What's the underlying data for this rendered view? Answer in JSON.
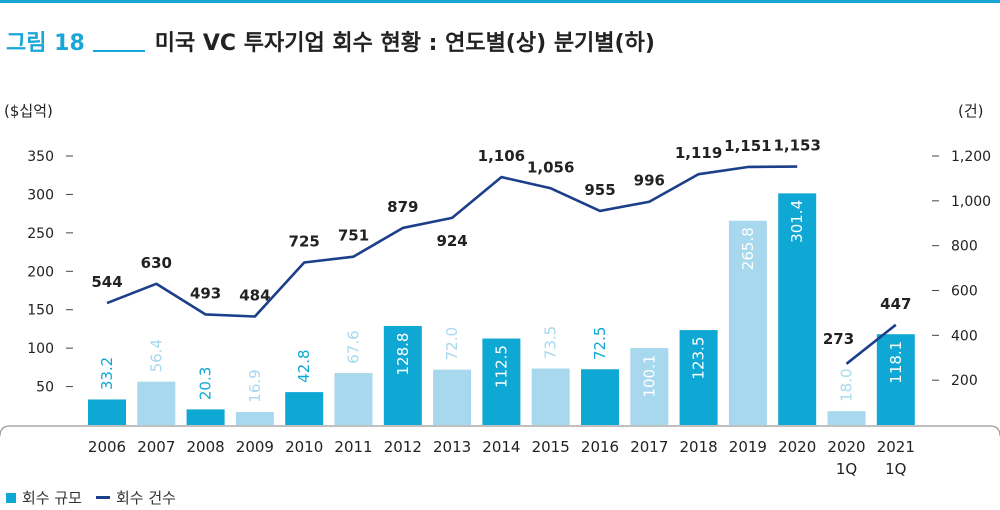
{
  "header": {
    "fig_label": "그림 18",
    "title": "미국 VC 투자기업 회수 현황 : 연도별(상) 분기별(하)"
  },
  "chart_data": {
    "type": "bar+line",
    "categories": [
      "2006",
      "2007",
      "2008",
      "2009",
      "2010",
      "2011",
      "2012",
      "2013",
      "2014",
      "2015",
      "2016",
      "2017",
      "2018",
      "2019",
      "2020",
      "2020\n1Q",
      "2021\n1Q"
    ],
    "y_left_unit": "($십억)",
    "y_right_unit": "(건)",
    "y_left_ticks": [
      50,
      100,
      150,
      200,
      250,
      300,
      350
    ],
    "y_right_ticks": [
      "200",
      "400",
      "600",
      "800",
      "1,000",
      "1,200"
    ],
    "ylim_left": [
      0,
      350
    ],
    "ylim_right": [
      0,
      1200
    ],
    "series": [
      {
        "name": "회수 규모",
        "type": "bar",
        "axis": "left",
        "values": [
          33.2,
          56.4,
          20.3,
          16.9,
          42.8,
          67.6,
          128.8,
          72.0,
          112.5,
          73.5,
          72.5,
          100.1,
          123.5,
          265.8,
          301.4,
          18.0,
          118.1
        ],
        "labels": [
          "33.2",
          "56.4",
          "20.3",
          "16.9",
          "42.8",
          "67.6",
          "128.8",
          "72.0",
          "112.5",
          "73.5",
          "72.5",
          "100.1",
          "123.5",
          "265.8",
          "301.4",
          "18.0",
          "118.1"
        ]
      },
      {
        "name": "회수 건수",
        "type": "line",
        "axis": "right",
        "values": [
          544,
          630,
          493,
          484,
          725,
          751,
          879,
          924,
          1106,
          1056,
          955,
          996,
          1119,
          1151,
          1153,
          273,
          447
        ],
        "labels": [
          "544",
          "630",
          "493",
          "484",
          "725",
          "751",
          "879",
          "924",
          "1,106",
          "1,056",
          "955",
          "996",
          "1,119",
          "1,151",
          "1,153",
          "273",
          "447"
        ]
      }
    ],
    "bar_colors": [
      "#0fa7d3",
      "#a8d8ee",
      "#0fa7d3",
      "#a8d8ee",
      "#0fa7d3",
      "#a8d8ee",
      "#0fa7d3",
      "#a8d8ee",
      "#0fa7d3",
      "#a8d8ee",
      "#0fa7d3",
      "#a8d8ee",
      "#0fa7d3",
      "#a8d8ee",
      "#0fa7d3",
      "#a8d8ee",
      "#0fa7d3"
    ],
    "line_color": "#1c3f8a",
    "legend_position": "bottom-left"
  },
  "legend": {
    "bar_label": "회수 규모",
    "line_label": "회수 건수"
  }
}
